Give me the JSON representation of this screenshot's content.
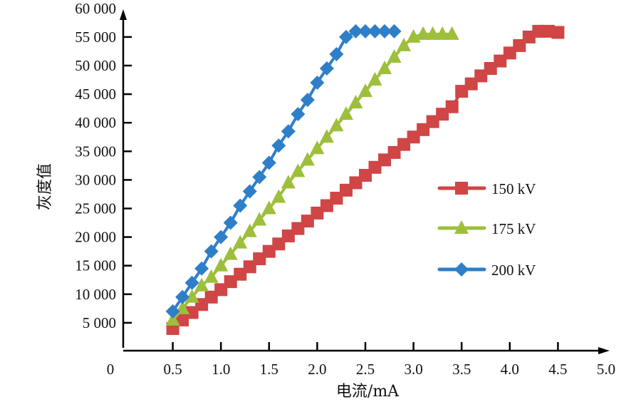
{
  "chart_data": {
    "type": "line",
    "title": "",
    "xlabel": "电流/mA",
    "ylabel": "灰度值",
    "xlim": [
      0,
      5.0
    ],
    "ylim": [
      0,
      60000
    ],
    "x_ticks": [
      "0",
      "0.5",
      "1.0",
      "1.5",
      "2.0",
      "2.5",
      "3.0",
      "3.5",
      "4.0",
      "4.5",
      "5.0"
    ],
    "y_ticks": [
      "5 000",
      "10 000",
      "15 000",
      "20 000",
      "25 000",
      "30 000",
      "35 000",
      "40 000",
      "45 000",
      "50 000",
      "55 000",
      "60 000"
    ],
    "legend_position": "right",
    "grid": false,
    "series": [
      {
        "name": "150 kV",
        "color": "#d04545",
        "marker": "square",
        "x": [
          0.5,
          0.6,
          0.7,
          0.8,
          0.9,
          1.0,
          1.1,
          1.2,
          1.3,
          1.4,
          1.5,
          1.6,
          1.7,
          1.8,
          1.9,
          2.0,
          2.1,
          2.2,
          2.3,
          2.4,
          2.5,
          2.6,
          2.7,
          2.8,
          2.9,
          3.0,
          3.1,
          3.2,
          3.3,
          3.4,
          3.5,
          3.6,
          3.7,
          3.8,
          3.9,
          4.0,
          4.1,
          4.2,
          4.3,
          4.4,
          4.5
        ],
        "y": [
          4000,
          5500,
          6800,
          8200,
          9500,
          10800,
          12200,
          13500,
          14800,
          16200,
          17500,
          18800,
          20200,
          21500,
          22800,
          24200,
          25500,
          26800,
          28200,
          29500,
          30800,
          32200,
          33500,
          34800,
          36200,
          37500,
          38800,
          40200,
          41500,
          42800,
          45500,
          46800,
          48200,
          49500,
          50800,
          52200,
          53500,
          55000,
          56000,
          56000,
          55800
        ]
      },
      {
        "name": "175 kV",
        "color": "#9dbf3c",
        "marker": "triangle",
        "x": [
          0.5,
          0.6,
          0.7,
          0.8,
          0.9,
          1.0,
          1.1,
          1.2,
          1.3,
          1.4,
          1.5,
          1.6,
          1.7,
          1.8,
          1.9,
          2.0,
          2.1,
          2.2,
          2.3,
          2.4,
          2.5,
          2.6,
          2.7,
          2.8,
          2.9,
          3.0,
          3.1,
          3.2,
          3.3,
          3.4
        ],
        "y": [
          5500,
          7500,
          9500,
          11500,
          13000,
          15000,
          17000,
          19000,
          21000,
          23000,
          25000,
          27000,
          29500,
          31500,
          33500,
          35500,
          37500,
          39500,
          41500,
          43500,
          45500,
          47500,
          49500,
          51500,
          53500,
          55000,
          55500,
          55500,
          55500,
          55500
        ]
      },
      {
        "name": "200 kV",
        "color": "#2f7fc8",
        "marker": "diamond",
        "x": [
          0.5,
          0.6,
          0.7,
          0.8,
          0.9,
          1.0,
          1.1,
          1.2,
          1.3,
          1.4,
          1.5,
          1.6,
          1.7,
          1.8,
          1.9,
          2.0,
          2.1,
          2.2,
          2.3,
          2.4,
          2.5,
          2.6,
          2.7,
          2.8
        ],
        "y": [
          7000,
          9500,
          12000,
          14500,
          17500,
          20000,
          22500,
          25500,
          28000,
          30500,
          33000,
          36000,
          38500,
          41500,
          44000,
          47000,
          49500,
          52000,
          55000,
          56000,
          56000,
          56000,
          56000,
          56000
        ]
      }
    ]
  }
}
